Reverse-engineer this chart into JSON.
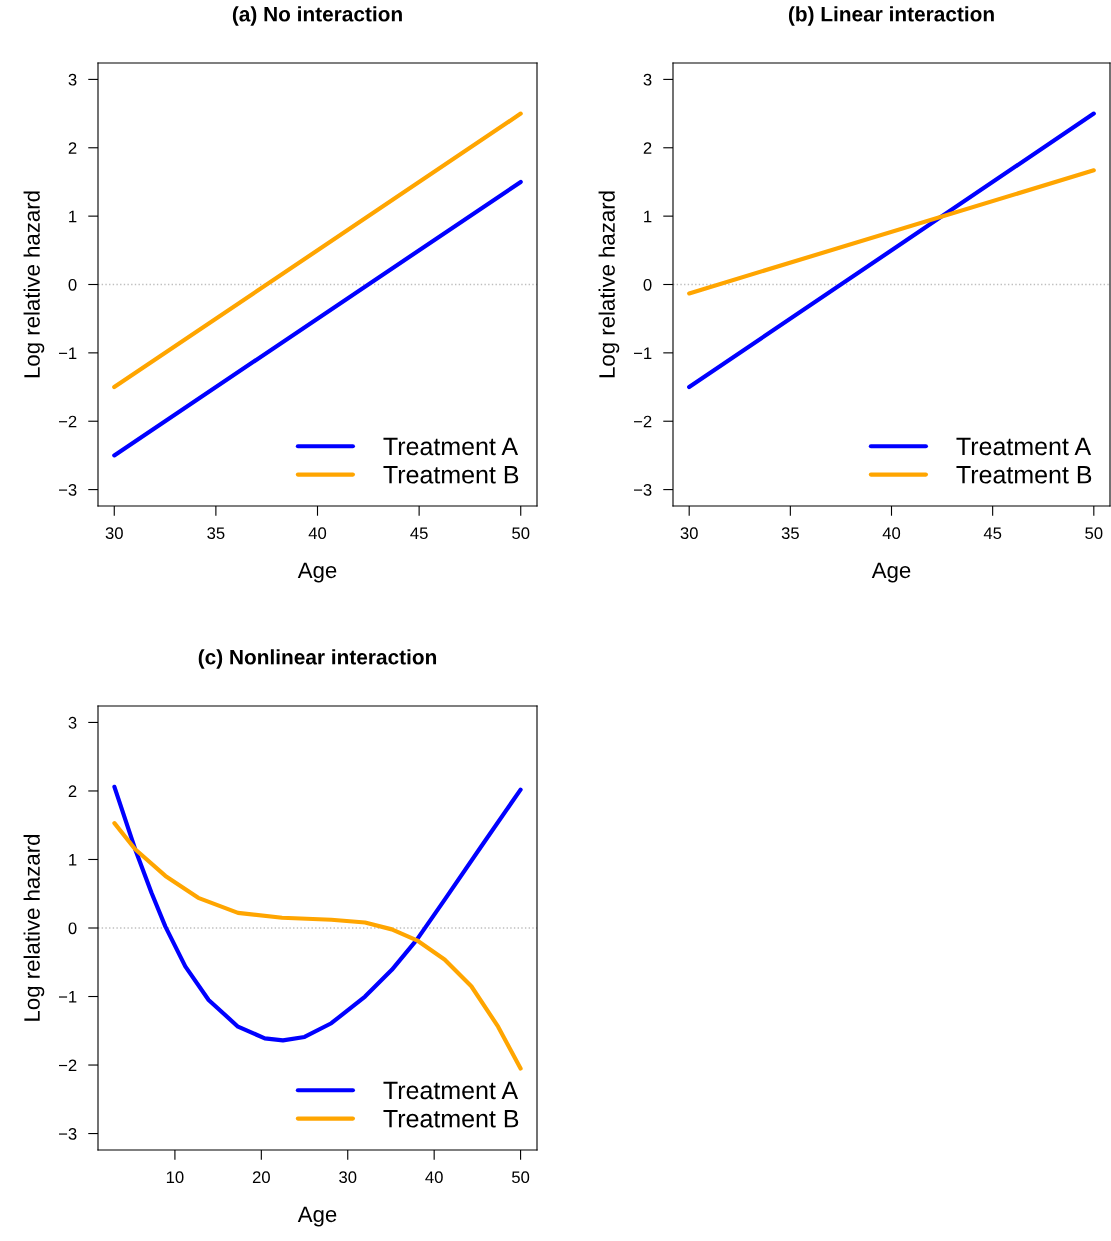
{
  "chart_data": [
    {
      "type": "line",
      "title": "(a) No interaction",
      "xlabel": "Age",
      "ylabel": "Log relative hazard",
      "series": [
        {
          "name": "Treatment A",
          "color": "#0000ff",
          "x": [
            30,
            50
          ],
          "values": [
            -2.5,
            1.5
          ]
        },
        {
          "name": "Treatment B",
          "color": "#ffa500",
          "x": [
            30,
            50
          ],
          "values": [
            -1.5,
            2.5
          ]
        }
      ],
      "xlim": [
        29.2,
        50.8
      ],
      "ylim": [
        -3.24,
        3.24
      ],
      "xticks": [
        30,
        35,
        40,
        45,
        50
      ],
      "yticks": [
        {
          "value": -3,
          "label": "−3"
        },
        {
          "value": -2,
          "label": "−2"
        },
        {
          "value": -1,
          "label": "−1"
        },
        0,
        1,
        2,
        3
      ],
      "ref_lines": [
        {
          "axis": "y",
          "value": 0,
          "color": "#bebebe",
          "line_style": "dotted"
        }
      ],
      "legend": "bottom right"
    },
    {
      "type": "line",
      "title": "(b) Linear interaction",
      "xlabel": "Age",
      "ylabel": "Log relative hazard",
      "series": [
        {
          "name": "Treatment A",
          "color": "#0000ff",
          "x": [
            30,
            50
          ],
          "values": [
            -1.5,
            2.5
          ]
        },
        {
          "name": "Treatment B",
          "color": "#ffa500",
          "x": [
            30,
            50
          ],
          "values": [
            -0.13,
            1.67
          ]
        }
      ],
      "xlim": [
        29.2,
        50.8
      ],
      "ylim": [
        -3.24,
        3.24
      ],
      "xticks": [
        30,
        35,
        40,
        45,
        50
      ],
      "yticks": [
        {
          "value": -3,
          "label": "−3"
        },
        {
          "value": -2,
          "label": "−2"
        },
        {
          "value": -1,
          "label": "−1"
        },
        0,
        1,
        2,
        3
      ],
      "ref_lines": [
        {
          "axis": "y",
          "value": 0,
          "color": "#bebebe",
          "line_style": "dotted"
        }
      ],
      "legend": "bottom right"
    },
    {
      "type": "line",
      "title": "(c) Nonlinear interaction",
      "xlabel": "Age",
      "ylabel": "Log relative hazard",
      "series": [
        {
          "name": "Treatment A",
          "color": "#0000ff",
          "x": [
            3,
            5.4,
            7.3,
            8.9,
            11.2,
            13.9,
            17.3,
            20.4,
            22.5,
            25,
            28.1,
            32,
            35.1,
            38,
            41.2,
            45.5,
            50
          ],
          "values": [
            2.06,
            1.15,
            0.51,
            0.02,
            -0.56,
            -1.05,
            -1.44,
            -1.61,
            -1.64,
            -1.59,
            -1.39,
            -1.0,
            -0.61,
            -0.17,
            0.41,
            1.2,
            2.02
          ]
        },
        {
          "name": "Treatment B",
          "color": "#ffa500",
          "x": [
            3,
            5.4,
            8.9,
            12.7,
            17.3,
            22.4,
            28.1,
            32,
            35.1,
            38,
            41.2,
            44.3,
            47.4,
            50
          ],
          "values": [
            1.53,
            1.15,
            0.76,
            0.44,
            0.22,
            0.15,
            0.12,
            0.08,
            -0.02,
            -0.18,
            -0.46,
            -0.85,
            -1.44,
            -2.05
          ]
        }
      ],
      "xlim": [
        1.1,
        51.9
      ],
      "ylim": [
        -3.24,
        3.24
      ],
      "xticks": [
        10,
        20,
        30,
        40,
        50
      ],
      "yticks": [
        {
          "value": -3,
          "label": "−3"
        },
        {
          "value": -2,
          "label": "−2"
        },
        {
          "value": -1,
          "label": "−1"
        },
        0,
        1,
        2,
        3
      ],
      "ref_lines": [
        {
          "axis": "y",
          "value": 0,
          "color": "#bebebe",
          "line_style": "dotted"
        }
      ],
      "legend": "bottom right"
    }
  ]
}
